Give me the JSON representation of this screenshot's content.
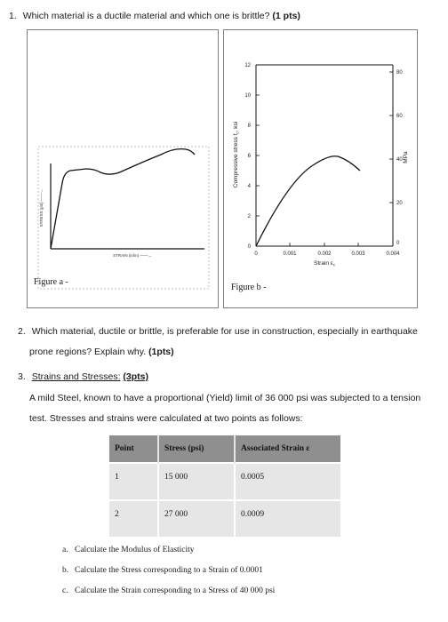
{
  "q1": {
    "number": "1.",
    "text": "Which material is a ductile material and which one is brittle?",
    "points": "(1 pts)"
  },
  "figure_a": {
    "caption": "Figure a -",
    "y_label": "STRESS (psi) ——→",
    "x_label": "STRAIN (in/in) ——→"
  },
  "figure_b": {
    "caption": "Figure b -",
    "y_label": "Compressive stress f",
    "y_label_sub": "c",
    "y_label_unit": ", ksi",
    "x_label": "Strain ε",
    "x_label_sub": "c",
    "right_label": "MPa",
    "y_ticks": [
      "0",
      "2",
      "4",
      "6",
      "8",
      "10",
      "12"
    ],
    "x_ticks": [
      "0",
      "0.001",
      "0.002",
      "0.003",
      "0.004"
    ],
    "mpa_ticks": [
      "0",
      "20",
      "40",
      "60",
      "80"
    ]
  },
  "q2": {
    "number": "2.",
    "line1": "Which material, ductile or brittle, is preferable for use in construction, especially in earthquake",
    "line2": "prone regions? Explain why.",
    "points": "(1pts)"
  },
  "q3": {
    "number": "3.",
    "title": "Strains and Stresses:",
    "points": "(3pts)",
    "line1": "A mild Steel, known to have a proportional (Yield) limit of 36 000 psi was subjected to a tension",
    "line2": "test. Stresses and strains were calculated at two points as follows:"
  },
  "table": {
    "headers": [
      "Point",
      "Stress (psi)",
      "Associated Strain ε"
    ],
    "rows": [
      [
        "1",
        "15 000",
        "0.0005"
      ],
      [
        "2",
        "27 000",
        "0.0009"
      ]
    ]
  },
  "tasks": [
    {
      "letter": "a.",
      "text": "Calculate the Modulus of Elasticity"
    },
    {
      "letter": "b.",
      "text": "Calculate the Stress corresponding to a Strain of 0.0001"
    },
    {
      "letter": "c.",
      "text": "Calculate the Strain corresponding to a Stress of 40 000 psi"
    }
  ]
}
